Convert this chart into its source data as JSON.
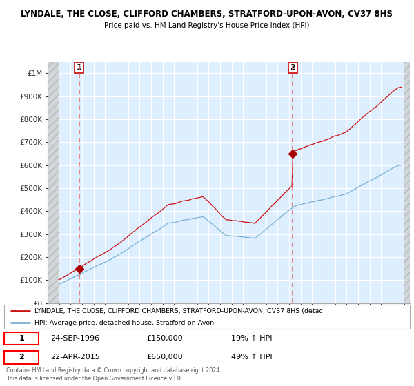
{
  "title_line1": "LYNDALE, THE CLOSE, CLIFFORD CHAMBERS, STRATFORD-UPON-AVON, CV37 8HS",
  "title_line2": "Price paid vs. HM Land Registry's House Price Index (HPI)",
  "ylim": [
    0,
    1050000
  ],
  "yticks": [
    0,
    100000,
    200000,
    300000,
    400000,
    500000,
    600000,
    700000,
    800000,
    900000,
    1000000
  ],
  "ytick_labels": [
    "£0",
    "£100K",
    "£200K",
    "£300K",
    "£400K",
    "£500K",
    "£600K",
    "£700K",
    "£800K",
    "£900K",
    "£1M"
  ],
  "sale1_date": 1996.73,
  "sale1_price": 150000,
  "sale1_label": "1",
  "sale1_text": "24-SEP-1996",
  "sale1_amount": "£150,000",
  "sale1_hpi_pct": "19% ↑ HPI",
  "sale2_date": 2015.31,
  "sale2_price": 650000,
  "sale2_label": "2",
  "sale2_text": "22-APR-2015",
  "sale2_amount": "£650,000",
  "sale2_hpi_pct": "49% ↑ HPI",
  "hpi_line_color": "#7aafd4",
  "price_line_color": "#cc1111",
  "sale_dot_color": "#aa0000",
  "vline_color": "#e87070",
  "bg_color": "#ddeeff",
  "legend_label_price": "LYNDALE, THE CLOSE, CLIFFORD CHAMBERS, STRATFORD-UPON-AVON, CV37 8HS (detac",
  "legend_label_hpi": "HPI: Average price, detached house, Stratford-on-Avon",
  "footer1": "Contains HM Land Registry data © Crown copyright and database right 2024.",
  "footer2": "This data is licensed under the Open Government Licence v3.0.",
  "xmin": 1994.0,
  "xmax": 2025.5,
  "hatch_left_end": 1995.0,
  "hatch_right_start": 2025.0
}
